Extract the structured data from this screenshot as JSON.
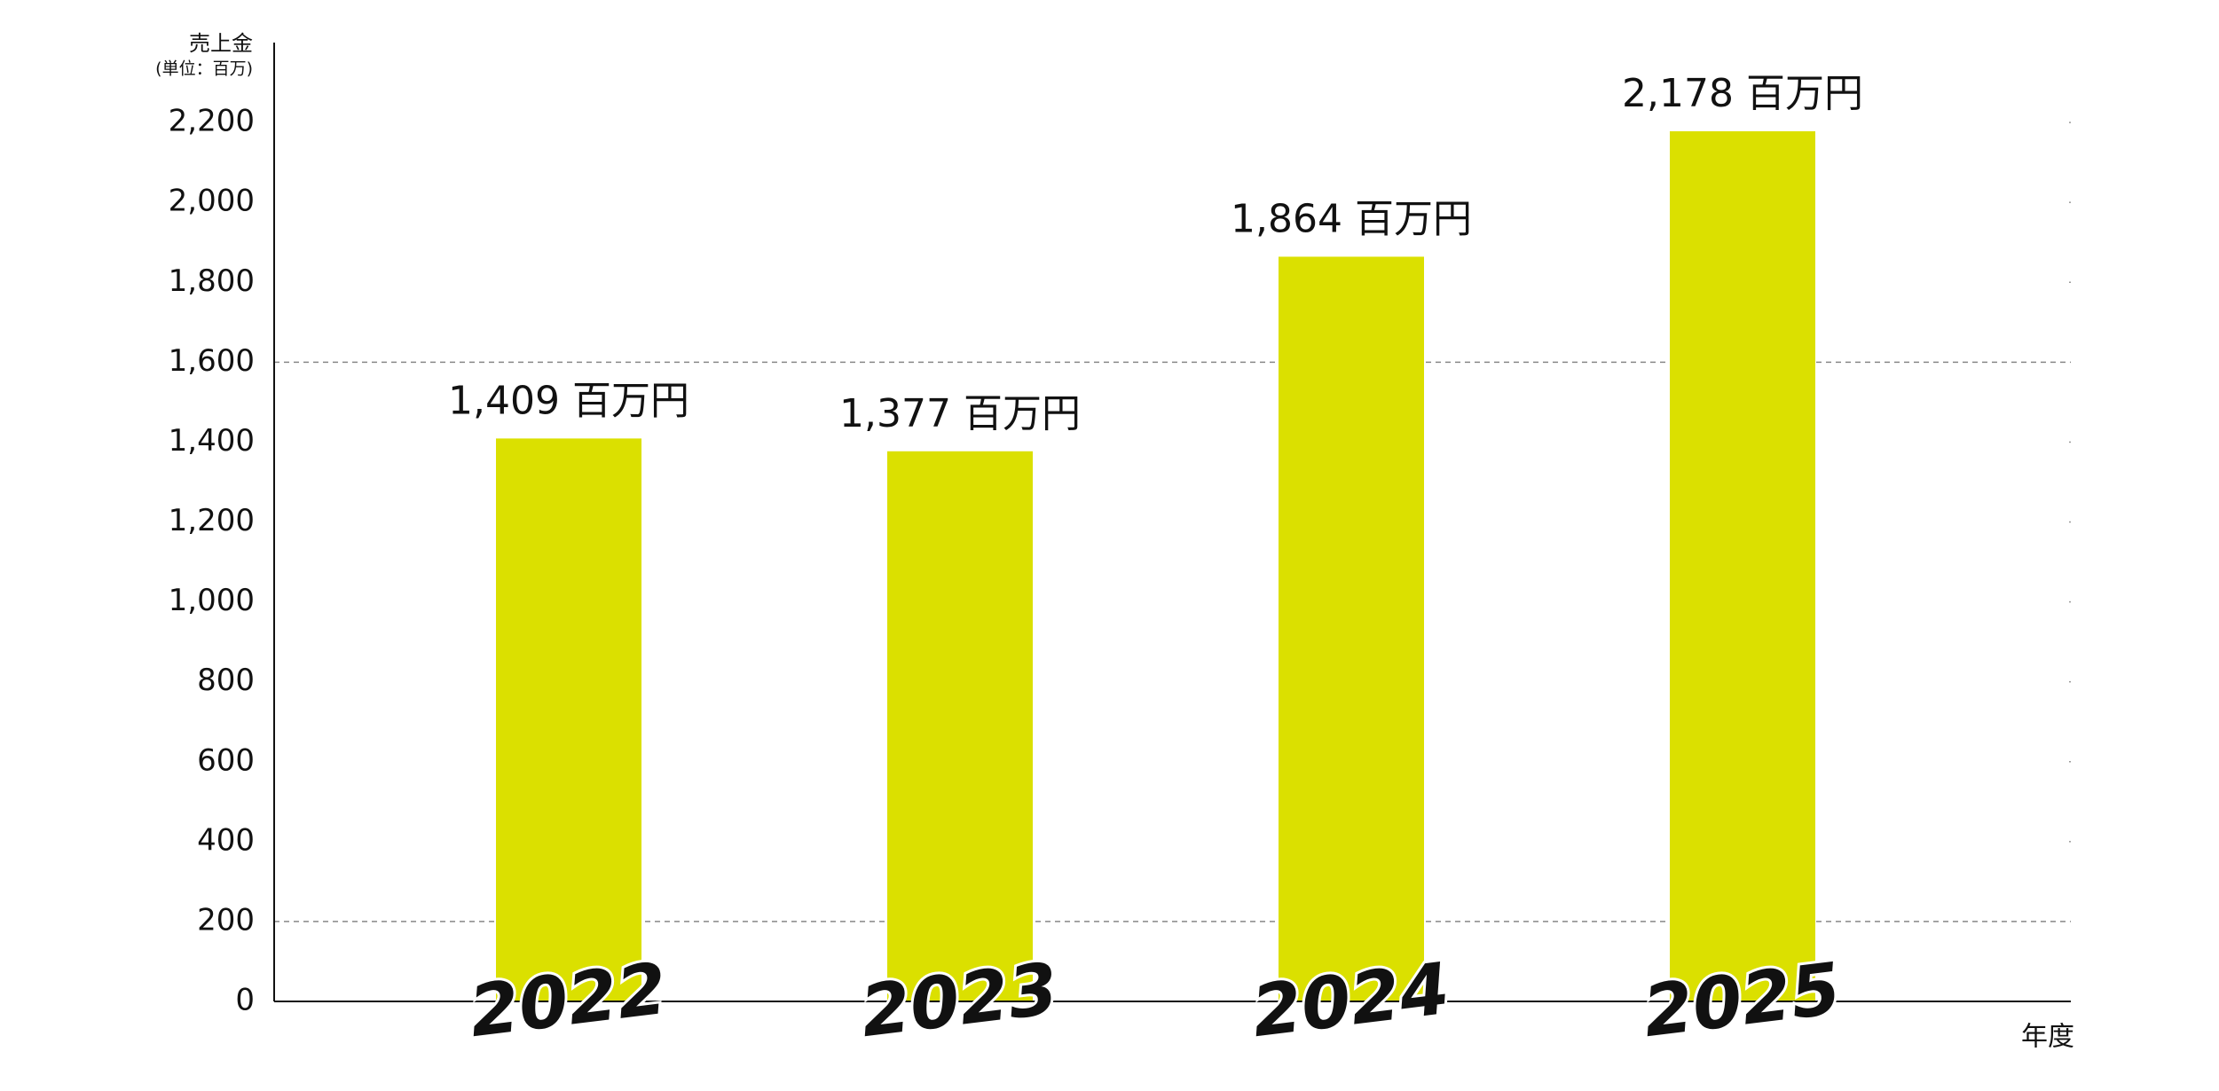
{
  "chart_data": {
    "type": "bar",
    "y_label": "売上金",
    "y_unit": "(単位：百万)",
    "x_label": "年度",
    "categories": [
      "2022",
      "2023",
      "2024",
      "2025"
    ],
    "values": [
      1409,
      1377,
      1864,
      2178
    ],
    "value_labels": [
      "1,409 百万円",
      "1,377 百万円",
      "1,864 百万円",
      "2,178 百万円"
    ],
    "color": "#dbe000",
    "ylim": [
      0,
      2400
    ],
    "yticks": [
      0,
      200,
      400,
      600,
      800,
      {
        "value": 1000,
        "label": "1,000"
      },
      {
        "value": 1200,
        "label": "1,200"
      },
      {
        "value": 1400,
        "label": "1,400"
      },
      {
        "value": 1600,
        "label": "1,600"
      },
      {
        "value": 1800,
        "label": "1,800"
      },
      {
        "value": 2000,
        "label": "2,000"
      },
      {
        "value": 2200,
        "label": "2,200"
      }
    ],
    "grid_values": [
      200,
      1600
    ]
  }
}
